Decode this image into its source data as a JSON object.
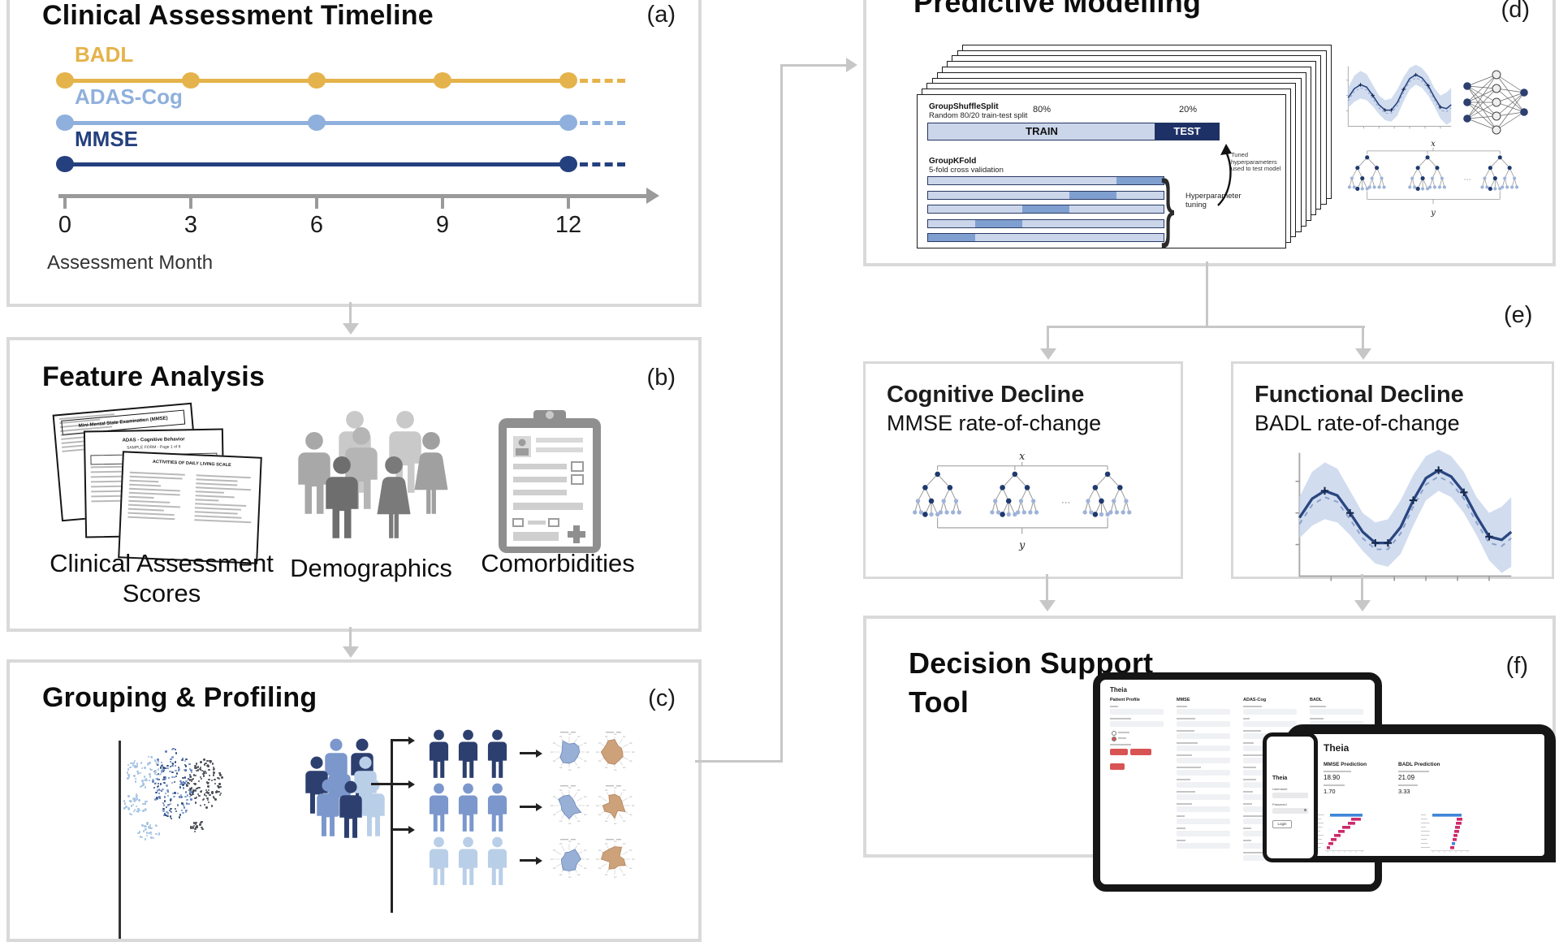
{
  "colors": {
    "gold": "#E5B34B",
    "light_blue": "#8FB0DC",
    "navy": "#24407E",
    "panel_border": "#d9d9d9",
    "connector": "#c7c7c7",
    "axis": "#9a9a9a",
    "train_fill": "#cbd6ea",
    "test_fill": "#1e3167",
    "fold_validation": "#7f9fd0",
    "accent_red": "#d85454",
    "shap_blue": "#3e86d8",
    "shap_pink": "#ce2a6b",
    "radar_blue": "#8fa8d2",
    "radar_tan": "#c99a70"
  },
  "panels": {
    "a": {
      "label": "(a)",
      "title": "Clinical Assessment Timeline",
      "axis_label": "Assessment Month",
      "ticks": [
        "0",
        "3",
        "6",
        "9",
        "12"
      ],
      "month_min": 0,
      "month_max": 12,
      "series": [
        {
          "name": "BADL",
          "color": "#E5B34B",
          "months": [
            0,
            3,
            6,
            9,
            12
          ]
        },
        {
          "name": "ADAS-Cog",
          "color": "#8FB0DC",
          "months": [
            0,
            6,
            12
          ]
        },
        {
          "name": "MMSE",
          "color": "#24407E",
          "months": [
            0,
            12
          ]
        }
      ]
    },
    "b": {
      "label": "(b)",
      "title": "Feature Analysis",
      "items": [
        {
          "label_line1": "Clinical Assessment",
          "label_line2": "Scores"
        },
        {
          "label": "Demographics"
        },
        {
          "label": "Comorbidities"
        }
      ],
      "documents": {
        "doc1_title": "Mini-Mental State Examination (MMSE)",
        "doc2_title": "ADAS - Cognitive Behavior",
        "doc2_subtitle": "SAMPLE FORM - Page 1 of 8",
        "doc3_title": "ACTIVITIES OF DAILY LIVING SCALE"
      }
    },
    "c": {
      "label": "(c)",
      "title": "Grouping & Profiling"
    },
    "d": {
      "label": "(d)",
      "title": "Predictive Modelling",
      "shuffle_split": {
        "method": "GroupShuffleSplit",
        "description": "Random 80/20 train-test split",
        "train_label": "TRAIN",
        "test_label": "TEST",
        "train_pct": "80%",
        "test_pct": "20%"
      },
      "kfold": {
        "method": "GroupKFold",
        "description": "5-fold cross validation",
        "folds": 5,
        "validation_fold_per_row": [
          5,
          4,
          3,
          2,
          1
        ]
      },
      "annotations": {
        "tuning": "Hyperparameter tuning",
        "tuned": "Tuned hyperparameters used to test model"
      },
      "tree_labels": {
        "input": "x",
        "output": "y"
      }
    },
    "e": {
      "label": "(e)",
      "boxes": [
        {
          "title": "Cognitive Decline",
          "subtitle": "MMSE rate-of-change"
        },
        {
          "title": "Functional Decline",
          "subtitle": "BADL rate-of-change"
        }
      ]
    },
    "f": {
      "label": "(f)",
      "title_line1": "Decision Support",
      "title_line2": "Tool",
      "app": {
        "name": "Theia",
        "laptop": {
          "heading": "Theia",
          "columns": [
            "Patient Profile",
            "MMSE",
            "ADAS-Cog",
            "BADL"
          ]
        },
        "phone": {
          "heading": "Theia",
          "username_label": "Username",
          "password_label": "Password",
          "login_label": "Login"
        },
        "tablet": {
          "heading": "Theia",
          "left_heading": "MMSE Prediction",
          "left_value": "18.90",
          "left_secondary": "1.70",
          "right_heading": "BADL Prediction",
          "right_value": "21.09",
          "right_secondary": "3.33"
        }
      }
    }
  }
}
